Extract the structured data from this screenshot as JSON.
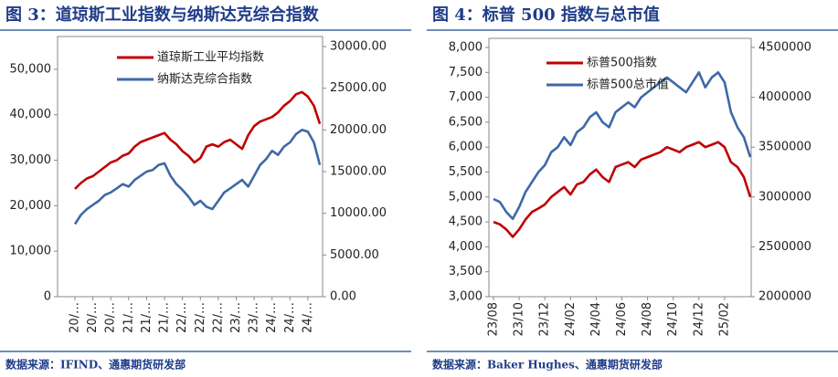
{
  "chart_data": [
    {
      "type": "line",
      "title": "图 3：道琼斯工业指数与纳斯达克综合指数",
      "source": "数据来源：IFIND、通惠期货研发部",
      "categories": [
        "20/…",
        null,
        null,
        "20/…",
        null,
        null,
        "20/…",
        null,
        null,
        "21/…",
        null,
        null,
        "21/…",
        null,
        null,
        "21/…",
        null,
        null,
        "22/…",
        null,
        null,
        "22/…",
        null,
        null,
        "22/…",
        null,
        null,
        "23/…",
        null,
        null,
        "23/…",
        null,
        null,
        "24/…",
        null,
        null,
        "24/…",
        null,
        null,
        "24/…",
        null,
        null
      ],
      "series": [
        {
          "name": "道琼斯工业平均指数",
          "color": "#c00000",
          "axis": "y",
          "values": [
            23700,
            25000,
            26000,
            26500,
            27500,
            28500,
            29500,
            30000,
            31000,
            31500,
            33000,
            34000,
            34500,
            35000,
            35500,
            36000,
            34500,
            33500,
            32000,
            31000,
            29500,
            30500,
            33000,
            33500,
            33000,
            34000,
            34500,
            33500,
            32500,
            35500,
            37500,
            38500,
            39000,
            39500,
            40500,
            42000,
            43000,
            44500,
            45000,
            44000,
            42000,
            38000
          ]
        },
        {
          "name": "纳斯达克综合指数",
          "color": "#3e68a8",
          "axis": "y2",
          "values": [
            8700,
            9800,
            10500,
            11000,
            11500,
            12200,
            12500,
            13000,
            13500,
            13200,
            14000,
            14500,
            15000,
            15200,
            15800,
            16000,
            14500,
            13500,
            12800,
            12000,
            11000,
            11500,
            10800,
            10500,
            11500,
            12500,
            13000,
            13500,
            14000,
            13200,
            14500,
            15800,
            16500,
            17500,
            17000,
            18000,
            18500,
            19500,
            20000,
            19800,
            18500,
            15800
          ]
        }
      ],
      "ylim": [
        0,
        55000
      ],
      "yticks": [
        0,
        {
          "value": 10000,
          "label": "10,000"
        },
        {
          "value": 20000,
          "label": "20,000"
        },
        {
          "value": 30000,
          "label": "30,000"
        },
        {
          "value": 40000,
          "label": "40,000"
        },
        {
          "value": 50000,
          "label": "50,000"
        }
      ],
      "y2lim": [
        0,
        30000
      ],
      "y2ticks": [
        {
          "value": 0,
          "label": "0.00"
        },
        {
          "value": 5000,
          "label": "5000.00"
        },
        {
          "value": 10000,
          "label": "10000.00"
        },
        {
          "value": 15000,
          "label": "15000.00"
        },
        {
          "value": 20000,
          "label": "20000.00"
        },
        {
          "value": 25000,
          "label": "25000.00"
        },
        {
          "value": 30000,
          "label": "30000.00"
        }
      ],
      "legend": "upper left"
    },
    {
      "type": "line",
      "title": "图 4：标普 500 指数与总市值",
      "source": "数据来源：Baker Hughes、通惠期货研发部",
      "categories": [
        "23/08",
        null,
        null,
        null,
        "23/10",
        null,
        null,
        null,
        "23/12",
        null,
        null,
        null,
        "24/02",
        null,
        null,
        null,
        "24/04",
        null,
        null,
        null,
        "24/06",
        null,
        null,
        null,
        "24/08",
        null,
        null,
        null,
        "24/10",
        null,
        null,
        null,
        "24/12",
        null,
        null,
        null,
        "25/02",
        null,
        null,
        null,
        null
      ],
      "series": [
        {
          "name": "标普500指数",
          "color": "#c00000",
          "axis": "y",
          "values": [
            4500,
            4450,
            4350,
            4200,
            4350,
            4550,
            4700,
            4770,
            4850,
            5000,
            5100,
            5200,
            5050,
            5250,
            5300,
            5450,
            5550,
            5400,
            5300,
            5600,
            5650,
            5700,
            5600,
            5750,
            5800,
            5850,
            5900,
            6000,
            5950,
            5900,
            6000,
            6050,
            6100,
            6000,
            6050,
            6100,
            6000,
            5700,
            5600,
            5400,
            5000
          ]
        },
        {
          "name": "标普500总市值",
          "color": "#3e68a8",
          "axis": "y2",
          "values": [
            2980000,
            2950000,
            2850000,
            2780000,
            2900000,
            3050000,
            3150000,
            3250000,
            3320000,
            3450000,
            3500000,
            3600000,
            3520000,
            3650000,
            3700000,
            3800000,
            3850000,
            3750000,
            3700000,
            3850000,
            3900000,
            3950000,
            3900000,
            4000000,
            4050000,
            4100000,
            4150000,
            4200000,
            4150000,
            4100000,
            4050000,
            4150000,
            4250000,
            4100000,
            4200000,
            4250000,
            4150000,
            3850000,
            3700000,
            3600000,
            3400000
          ]
        }
      ],
      "ylim": [
        3000,
        8000
      ],
      "yticks": [
        {
          "value": 3000,
          "label": "3,000"
        },
        {
          "value": 3500,
          "label": "3,500"
        },
        {
          "value": 4000,
          "label": "4,000"
        },
        {
          "value": 4500,
          "label": "4,500"
        },
        {
          "value": 5000,
          "label": "5,000"
        },
        {
          "value": 5500,
          "label": "5,500"
        },
        {
          "value": 6000,
          "label": "6,000"
        },
        {
          "value": 6500,
          "label": "6,500"
        },
        {
          "value": 7000,
          "label": "7,000"
        },
        {
          "value": 7500,
          "label": "7,500"
        },
        {
          "value": 8000,
          "label": "8,000"
        }
      ],
      "y2lim": [
        2000000,
        4500000
      ],
      "y2ticks": [
        2000000,
        2500000,
        3000000,
        3500000,
        4000000,
        4500000
      ],
      "legend": "upper left"
    }
  ]
}
